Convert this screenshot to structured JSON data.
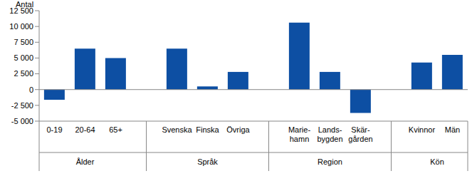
{
  "chart_data": {
    "type": "bar",
    "y_label": "Antal",
    "categories": [
      "0-19",
      "20-64",
      "65+",
      null,
      "Svenska",
      "Finska",
      "Övriga",
      null,
      "Marie-\nhamn",
      "Lands-\nbygden",
      "Skär-\ngården",
      null,
      "Kvinnor",
      "Män"
    ],
    "category_groups": [
      "Ålder",
      "Ålder",
      "Ålder",
      null,
      "Språk",
      "Språk",
      "Språk",
      null,
      "Region",
      "Region",
      "Region",
      null,
      "Kön",
      "Kön"
    ],
    "values": [
      -1600,
      6500,
      5000,
      null,
      6500,
      500,
      2800,
      null,
      10600,
      2800,
      -3700,
      null,
      4300,
      5500
    ],
    "color": "#0d4fa3",
    "ylim": [
      -5000,
      12500
    ],
    "yticks": [
      {
        "value": -5000,
        "label": "-5 000"
      },
      {
        "value": -2500,
        "label": "-2 500"
      },
      0,
      {
        "value": 2500,
        "label": "2 500"
      },
      {
        "value": 5000,
        "label": "5 000"
      },
      {
        "value": 7500,
        "label": "7 500"
      },
      {
        "value": 10000,
        "label": "10 000"
      },
      {
        "value": 12500,
        "label": "12 500"
      }
    ],
    "grid": false
  }
}
